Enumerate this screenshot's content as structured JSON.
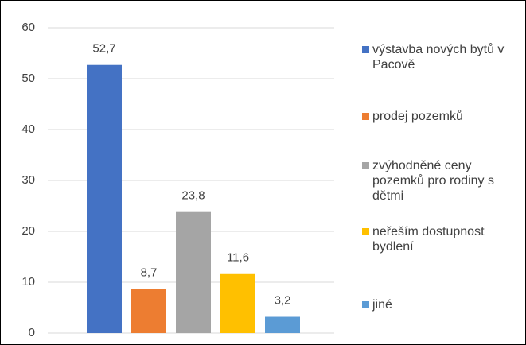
{
  "chart_data": {
    "type": "bar",
    "categories": [
      null
    ],
    "series": [
      {
        "name": "výstavba nových bytů v Pacově",
        "color": "#4472c4",
        "values": [
          52.7
        ],
        "value_labels": [
          "52,7"
        ]
      },
      {
        "name": "prodej pozemků",
        "color": "#ed7d31",
        "values": [
          8.7
        ],
        "value_labels": [
          "8,7"
        ]
      },
      {
        "name": "zvýhodněné ceny pozemků pro rodiny s dětmi",
        "color": "#a5a5a5",
        "values": [
          23.8
        ],
        "value_labels": [
          "23,8"
        ]
      },
      {
        "name": "neřeším dostupnost bydlení",
        "color": "#ffc000",
        "values": [
          11.6
        ],
        "value_labels": [
          "11,6"
        ]
      },
      {
        "name": "jiné",
        "color": "#5b9bd5",
        "values": [
          3.2
        ],
        "value_labels": [
          "3,2"
        ]
      }
    ],
    "ylim": [
      0,
      60
    ],
    "yticks": [
      0,
      10,
      20,
      30,
      40,
      50,
      60
    ],
    "grid": true,
    "legend": "right"
  }
}
